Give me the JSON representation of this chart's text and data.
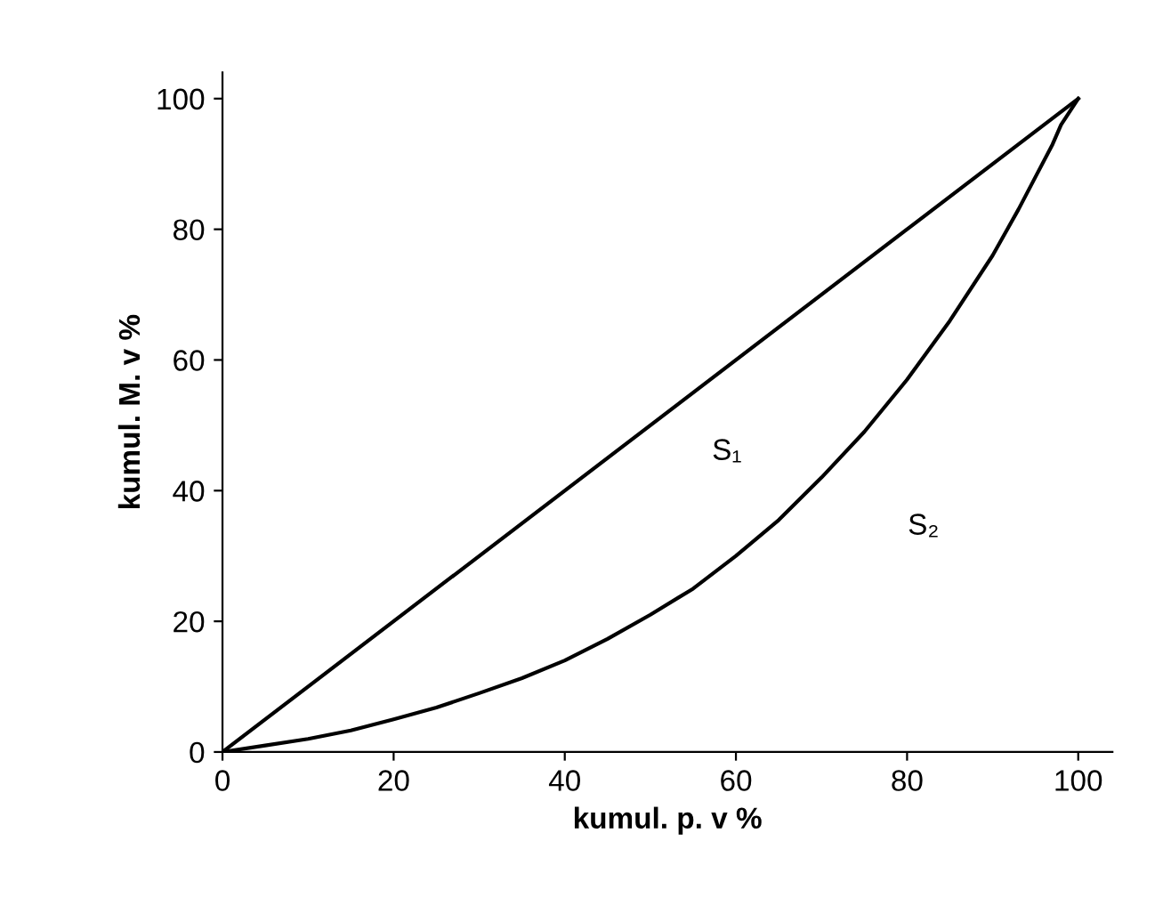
{
  "chart_data": {
    "type": "line",
    "xlabel": "kumul. p. v %",
    "ylabel": "kumul. M. v %",
    "series": [
      {
        "color": "#000000",
        "x": [
          0,
          100
        ],
        "values": [
          0,
          100
        ]
      },
      {
        "color": "#000000",
        "x": [
          0,
          5,
          10,
          15,
          20,
          25,
          30,
          35,
          40,
          45,
          50,
          55,
          60,
          65,
          70,
          75,
          80,
          85,
          90,
          93,
          95,
          97,
          98,
          100
        ],
        "values": [
          0,
          1,
          2,
          3.3,
          5,
          6.8,
          9,
          11.3,
          14,
          17.3,
          21,
          25,
          30,
          35.5,
          42,
          49,
          57,
          66,
          76,
          83,
          88,
          93,
          96,
          100
        ]
      }
    ],
    "annotations": [
      "S₁",
      "S₂"
    ],
    "xlim": [
      0,
      104
    ],
    "ylim": [
      0,
      104
    ],
    "xticks": [
      0,
      20,
      40,
      60,
      80,
      100
    ],
    "yticks": [
      0,
      20,
      40,
      60,
      80,
      100
    ],
    "grid": false,
    "marker": "none",
    "line_style": "solid"
  }
}
